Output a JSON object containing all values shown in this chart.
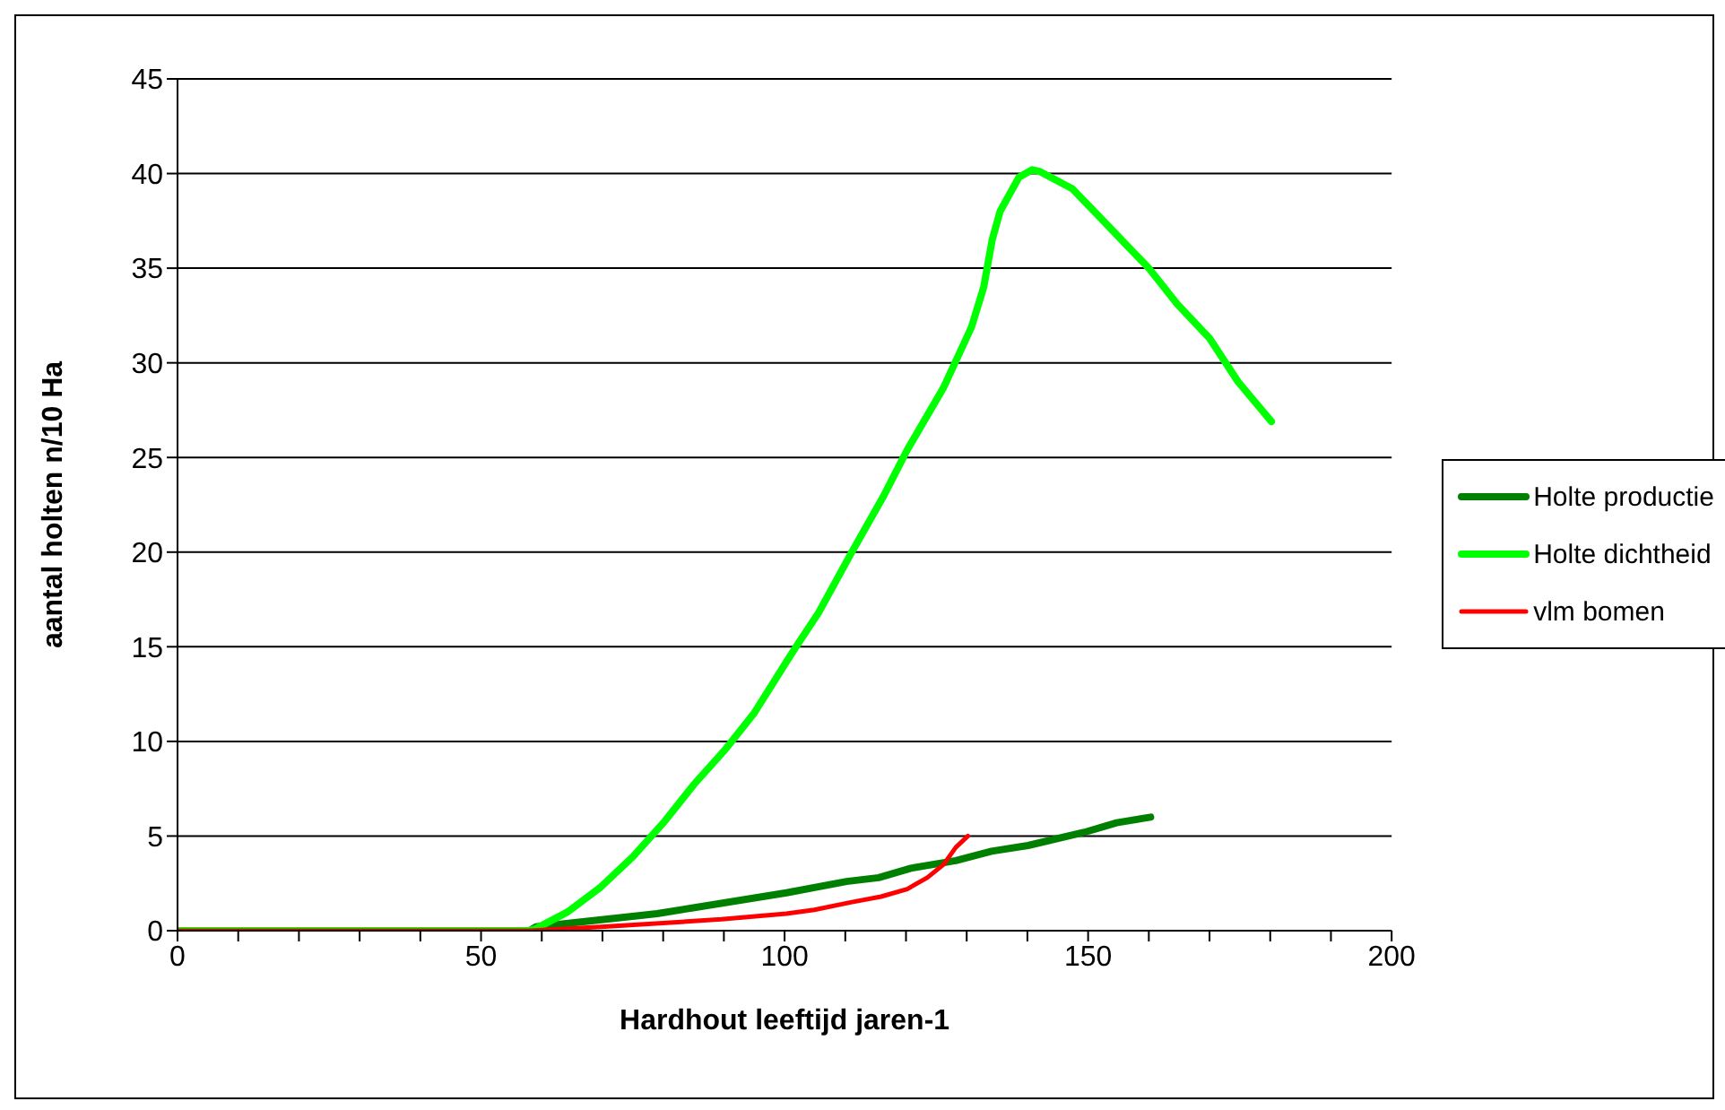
{
  "chart_data": {
    "type": "line",
    "xlabel": "Hardhout leeftijd jaren-1",
    "ylabel": "aantal holten n/10 Ha",
    "xlim": [
      0,
      200
    ],
    "xticks": [
      0,
      {
        "value": 10,
        "label": null
      },
      {
        "value": 20,
        "label": null
      },
      {
        "value": 30,
        "label": null
      },
      {
        "value": 40,
        "label": null
      },
      50,
      {
        "value": 60,
        "label": null
      },
      {
        "value": 70,
        "label": null
      },
      {
        "value": 80,
        "label": null
      },
      {
        "value": 90,
        "label": null
      },
      100,
      {
        "value": 110,
        "label": null
      },
      {
        "value": 120,
        "label": null
      },
      {
        "value": 130,
        "label": null
      },
      {
        "value": 140,
        "label": null
      },
      150,
      {
        "value": 160,
        "label": null
      },
      {
        "value": 170,
        "label": null
      },
      {
        "value": 180,
        "label": null
      },
      {
        "value": 190,
        "label": null
      },
      200
    ],
    "ylim": [
      0,
      45
    ],
    "yticks": [
      0,
      5,
      10,
      15,
      20,
      25,
      30,
      35,
      40,
      45
    ],
    "grid": "y",
    "legend": "right",
    "marker": "none",
    "line_style": "solid",
    "series": [
      {
        "name": "Holte productie",
        "color": "#008000",
        "x": [
          0,
          58,
          59,
          79,
          100.3,
          110.2,
          115.5,
          120.8,
          128.2,
          134.1,
          140.1,
          149.4,
          154.7,
          160.3
        ],
        "values": [
          0,
          0,
          0.2,
          0.9,
          2,
          2.6,
          2.8,
          3.3,
          3.7,
          4.2,
          4.5,
          5.2,
          5.7,
          6
        ]
      },
      {
        "name": "Holte dichtheid",
        "color": "#00ff00",
        "x": [
          0,
          40,
          44.6,
          57.8,
          59,
          64.3,
          69.7,
          75,
          80.3,
          85,
          90.3,
          95,
          100.3,
          102.3,
          105.6,
          110.9,
          116.2,
          120.2,
          126.2,
          130.8,
          132.8,
          134.2,
          135.5,
          138.6,
          140.8,
          142.1,
          147.4,
          154,
          160,
          164.7,
          170,
          174.7,
          180.2
        ],
        "values": [
          0,
          0,
          0,
          0,
          0.1,
          1,
          2.3,
          3.9,
          5.8,
          7.7,
          9.6,
          11.5,
          14.2,
          15.2,
          16.8,
          19.9,
          22.9,
          25.4,
          28.7,
          31.9,
          34,
          36.5,
          38,
          39.8,
          40.2,
          40.1,
          39.2,
          37,
          35,
          33.1,
          31.3,
          29,
          26.9
        ]
      },
      {
        "name": "vlm bomen",
        "color": "#ff0000",
        "x": [
          0,
          58,
          69.7,
          89.6,
          100.3,
          104.9,
          110.9,
          115.9,
          120.2,
          123.5,
          126.2,
          128.2,
          130.2
        ],
        "values": [
          0,
          0,
          0.2,
          0.6,
          0.9,
          1.1,
          1.5,
          1.8,
          2.2,
          2.8,
          3.5,
          4.4,
          5
        ]
      }
    ]
  }
}
